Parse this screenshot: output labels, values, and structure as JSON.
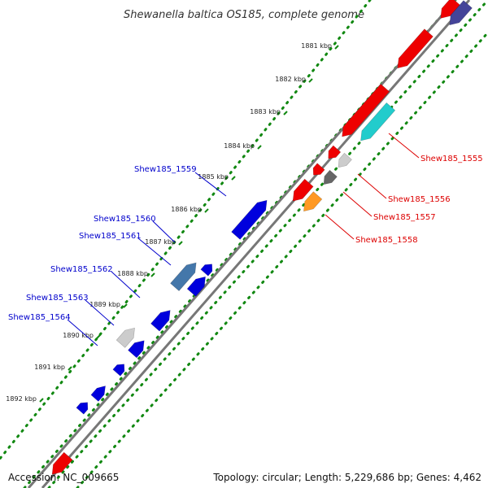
{
  "title": "Shewanella baltica OS185, complete genome",
  "accession": "Accession: NC_009665",
  "summary": "Topology: circular; Length: 5,229,686 bp; Genes: 4,462",
  "ticks": [
    "1881 kbp",
    "1882 kbp",
    "1883 kbp",
    "1884 kbp",
    "1885 kbp",
    "1886 kbp",
    "1887 kbp",
    "1888 kbp",
    "1889 kbp",
    "1890 kbp",
    "1891 kbp",
    "1892 kbp"
  ],
  "forward_labels": [
    "Shew185_1559",
    "Shew185_1560",
    "Shew185_1561",
    "Shew185_1562",
    "Shew185_1563",
    "Shew185_1564"
  ],
  "reverse_labels": [
    "Shew185_1555",
    "Shew185_1556",
    "Shew185_1557",
    "Shew185_1558"
  ],
  "colors": {
    "forward": "#0000dd",
    "reverse": "#ee0000",
    "forward_label": "#0000cc",
    "reverse_label": "#dd0000",
    "backbone": "#777777",
    "dots": "#118811",
    "teal": "#22cccc",
    "orange": "#ff9922",
    "light_gray": "#cccccc",
    "dark_gray": "#666666",
    "steel_blue": "#4477aa",
    "navy": "#444499"
  }
}
